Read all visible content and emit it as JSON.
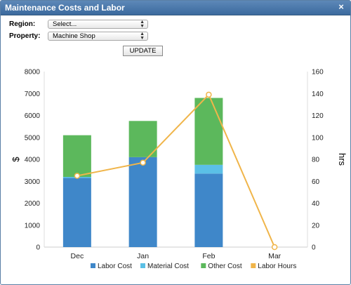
{
  "window": {
    "title": "Maintenance Costs and Labor",
    "close_label": "×"
  },
  "form": {
    "region_label": "Region:",
    "region_value": "Select...",
    "property_label": "Property:",
    "property_value": "Machine Shop",
    "update_label": "UPDATE"
  },
  "chart_data": {
    "type": "bar",
    "stacked": true,
    "categories": [
      "Dec",
      "Jan",
      "Feb",
      "Mar"
    ],
    "ylabel": "$",
    "y2label": "hrs",
    "ylim": [
      0,
      8000
    ],
    "y2lim": [
      0,
      160
    ],
    "yticks": [
      "0",
      "1000",
      "2000",
      "3000",
      "4000",
      "5000",
      "6000",
      "7000",
      "8000"
    ],
    "y2ticks": [
      "0",
      "20",
      "40",
      "60",
      "80",
      "100",
      "120",
      "140",
      "160"
    ],
    "series": [
      {
        "name": "Labor Cost",
        "kind": "bar",
        "color": "#3f87c9",
        "values": [
          3150,
          4100,
          3350,
          0
        ]
      },
      {
        "name": "Material Cost",
        "kind": "bar",
        "color": "#5bc0e6",
        "values": [
          50,
          0,
          400,
          0
        ]
      },
      {
        "name": "Other Cost",
        "kind": "bar",
        "color": "#5cb85c",
        "values": [
          1900,
          1650,
          3050,
          0
        ]
      },
      {
        "name": "Labor Hours",
        "kind": "line",
        "axis": "right",
        "color": "#f0b54a",
        "values": [
          65,
          77,
          139,
          0
        ]
      }
    ],
    "grid": false,
    "legend": "bottom"
  }
}
